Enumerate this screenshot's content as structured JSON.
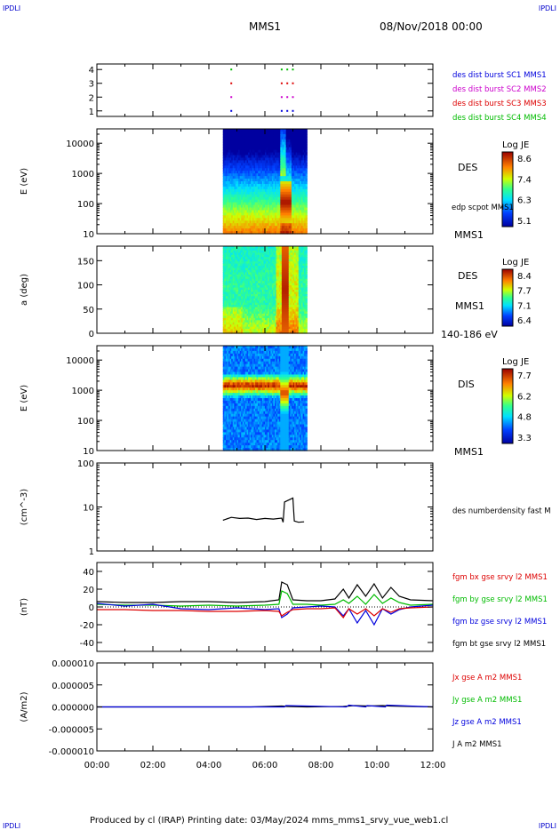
{
  "header": {
    "corner_left": "IPDLI",
    "corner_right": "IPDLI",
    "title": "MMS1",
    "date": "08/Nov/2018 00:00"
  },
  "footer": {
    "text": "Produced by cl (IRAP)   Printing date: 03/May/2024   mms_mms1_srvy_vue_web1.cl",
    "corner_left": "IPDLI",
    "corner_right": "IPDLI"
  },
  "colors": {
    "red": "#dd0000",
    "green": "#00bb00",
    "blue": "#0000dd",
    "magenta": "#cc00cc",
    "black": "#000000"
  },
  "time_axis": {
    "range_hours": [
      0,
      12
    ],
    "ticks": [
      "00:00",
      "02:00",
      "04:00",
      "06:00",
      "08:00",
      "10:00",
      "12:00"
    ]
  },
  "chart_data": [
    {
      "type": "scatter",
      "id": "burst",
      "yticks": [
        "1",
        "2",
        "3",
        "4"
      ],
      "ylim": [
        0.6,
        4.4
      ],
      "legend": [
        {
          "label": "des dist burst SC1 MMS1",
          "color": "#0000dd"
        },
        {
          "label": "des dist burst SC2 MMS2",
          "color": "#cc00cc"
        },
        {
          "label": "des dist burst SC3 MMS3",
          "color": "#dd0000"
        },
        {
          "label": "des dist burst SC4 MMS4",
          "color": "#00bb00"
        }
      ],
      "series": [
        {
          "level": 1,
          "color": "#0000dd",
          "x": [
            4.8,
            6.6,
            6.8,
            7.0
          ]
        },
        {
          "level": 2,
          "color": "#cc00cc",
          "x": [
            4.8,
            6.6,
            6.8,
            7.0
          ]
        },
        {
          "level": 3,
          "color": "#dd0000",
          "x": [
            4.8,
            6.6,
            6.8,
            7.0
          ]
        },
        {
          "level": 4,
          "color": "#00bb00",
          "x": [
            4.8,
            6.6,
            6.8,
            7.0
          ]
        }
      ]
    },
    {
      "type": "heatmap",
      "id": "des_energy",
      "ylabel": "E (eV)",
      "yscale": "log",
      "ylim": [
        10,
        30000
      ],
      "yticks": [
        "10",
        "100",
        "1000",
        "10000"
      ],
      "data_x_range": [
        4.5,
        7.5
      ],
      "label_right": "DES",
      "label_right_2": "edp scpot MMS1",
      "label_bottom_right": "MMS1",
      "colorbar": {
        "title": "Log JE",
        "ticks": [
          "8.6",
          "7.4",
          "6.3",
          "5.1"
        ]
      }
    },
    {
      "type": "heatmap",
      "id": "des_pitch",
      "ylabel": "a (deg)",
      "yscale": "linear",
      "ylim": [
        0,
        180
      ],
      "yticks": [
        "0",
        "50",
        "100",
        "150"
      ],
      "data_x_range": [
        4.5,
        7.5
      ],
      "label_right": "DES",
      "label_right_2": "MMS1",
      "label_bottom_right": "140-186 eV",
      "colorbar": {
        "title": "Log JE",
        "ticks": [
          "8.4",
          "7.7",
          "7.1",
          "6.4"
        ]
      }
    },
    {
      "type": "heatmap",
      "id": "dis_energy",
      "ylabel": "E (eV)",
      "yscale": "log",
      "ylim": [
        10,
        30000
      ],
      "yticks": [
        "10",
        "100",
        "1000",
        "10000"
      ],
      "data_x_range": [
        4.5,
        7.5
      ],
      "label_right": "DIS",
      "label_bottom_right": "MMS1",
      "colorbar": {
        "title": "Log JE",
        "ticks": [
          "7.7",
          "6.2",
          "4.8",
          "3.3"
        ]
      }
    },
    {
      "type": "line",
      "id": "density",
      "ylabel": "(cm^-3)",
      "yscale": "log",
      "ylim": [
        1,
        100
      ],
      "yticks": [
        "1",
        "10",
        "100"
      ],
      "legend": [
        {
          "label": "des numberdensity fast M",
          "color": "#000000"
        }
      ],
      "series": [
        {
          "name": "des numberdensity fast M",
          "color": "#000000",
          "x": [
            4.5,
            4.8,
            5.1,
            5.4,
            5.7,
            6.0,
            6.3,
            6.6,
            6.65,
            6.7,
            7.0,
            7.05,
            7.2,
            7.4
          ],
          "y": [
            5.0,
            5.8,
            5.5,
            5.6,
            5.2,
            5.5,
            5.3,
            5.6,
            4.5,
            13,
            16,
            4.8,
            4.5,
            4.6
          ]
        }
      ]
    },
    {
      "type": "line",
      "id": "fgm",
      "ylabel": "(nT)",
      "ylim": [
        -50,
        50
      ],
      "yticks": [
        "-40",
        "-20",
        "0",
        "20",
        "40"
      ],
      "legend": [
        {
          "label": "fgm bx gse srvy l2 MMS1",
          "color": "#dd0000"
        },
        {
          "label": "fgm by gse srvy l2 MMS1",
          "color": "#00bb00"
        },
        {
          "label": "fgm bz gse srvy l2 MMS1",
          "color": "#0000dd"
        },
        {
          "label": "fgm bt gse srvy l2 MMS1",
          "color": "#000000"
        }
      ],
      "series": [
        {
          "name": "fgm bt gse srvy l2 MMS1",
          "color": "#000000",
          "x": [
            0,
            1,
            2,
            3,
            4,
            5,
            6,
            6.5,
            6.6,
            6.8,
            7.0,
            7.5,
            8,
            8.5,
            8.8,
            9.0,
            9.3,
            9.6,
            9.9,
            10.2,
            10.5,
            10.8,
            11.2,
            12
          ],
          "y": [
            6,
            5,
            5,
            6,
            6,
            5,
            6,
            8,
            28,
            25,
            8,
            7,
            7,
            9,
            20,
            10,
            25,
            12,
            26,
            10,
            22,
            12,
            8,
            7
          ]
        },
        {
          "name": "fgm by gse srvy l2 MMS1",
          "color": "#00bb00",
          "x": [
            0,
            1,
            2,
            3,
            4,
            5,
            6,
            6.5,
            6.6,
            6.8,
            7.0,
            7.5,
            8,
            8.5,
            8.8,
            9.0,
            9.3,
            9.6,
            9.9,
            10.2,
            10.5,
            10.8,
            11.2,
            12
          ],
          "y": [
            3,
            2,
            2,
            1,
            2,
            1,
            2,
            3,
            18,
            15,
            3,
            3,
            2,
            3,
            8,
            4,
            12,
            3,
            14,
            4,
            10,
            5,
            2,
            3
          ]
        },
        {
          "name": "fgm bz gse srvy l2 MMS1",
          "color": "#0000dd",
          "x": [
            0,
            1,
            2,
            3,
            4,
            5,
            6,
            6.5,
            6.6,
            6.8,
            7.0,
            7.5,
            8,
            8.5,
            8.8,
            9.0,
            9.3,
            9.6,
            9.9,
            10.2,
            10.5,
            10.8,
            11.2,
            12
          ],
          "y": [
            4,
            1,
            3,
            -2,
            -3,
            -1,
            -3,
            -2,
            -12,
            -8,
            -1,
            0,
            1,
            0,
            -10,
            -2,
            -18,
            -4,
            -20,
            -2,
            -8,
            -3,
            0,
            2
          ]
        },
        {
          "name": "fgm bx gse srvy l2 MMS1",
          "color": "#dd0000",
          "x": [
            0,
            1,
            2,
            3,
            4,
            5,
            6,
            6.5,
            6.6,
            6.8,
            7.0,
            7.5,
            8,
            8.5,
            8.8,
            9.0,
            9.3,
            9.6,
            9.9,
            10.2,
            10.5,
            10.8,
            11.2,
            12
          ],
          "y": [
            -3,
            -3,
            -4,
            -4,
            -5,
            -5,
            -4,
            -5,
            -10,
            -6,
            -3,
            -2,
            -2,
            -1,
            -12,
            -2,
            -8,
            -2,
            -10,
            -2,
            -6,
            -2,
            -1,
            0
          ]
        }
      ]
    },
    {
      "type": "line",
      "id": "current",
      "ylabel": "(A/m2)",
      "ylim": [
        -1e-05,
        1e-05
      ],
      "yticks": [
        "-0.000010",
        "-0.000005",
        "0.000000",
        "0.000005",
        "0.000010"
      ],
      "legend": [
        {
          "label": "Jx gse A m2 MMS1",
          "color": "#dd0000"
        },
        {
          "label": "Jy gse A m2 MMS1",
          "color": "#00bb00"
        },
        {
          "label": "Jz gse A m2 MMS1",
          "color": "#0000dd"
        },
        {
          "label": "J A m2 MMS1",
          "color": "#000000"
        }
      ],
      "series": [
        {
          "name": "J A m2 MMS1",
          "color": "#000000",
          "x": [
            0,
            4.5,
            5.5,
            6.6,
            6.8,
            7.5,
            8.8,
            9.2,
            9.7,
            10.2,
            10.5,
            12
          ],
          "y": [
            0,
            0,
            0,
            2e-07,
            1e-07,
            0,
            1e-07,
            3e-07,
            2e-07,
            3e-07,
            2e-07,
            0
          ]
        },
        {
          "name": "Jz gse A m2 MMS1",
          "color": "#0000dd",
          "x": [
            0,
            6.7,
            6.75,
            8.9,
            9.0,
            9.6,
            9.65,
            10.3,
            10.35,
            12
          ],
          "y": [
            0,
            0,
            3e-07,
            0,
            4e-07,
            0,
            3e-07,
            0,
            4e-07,
            0
          ]
        }
      ]
    }
  ]
}
